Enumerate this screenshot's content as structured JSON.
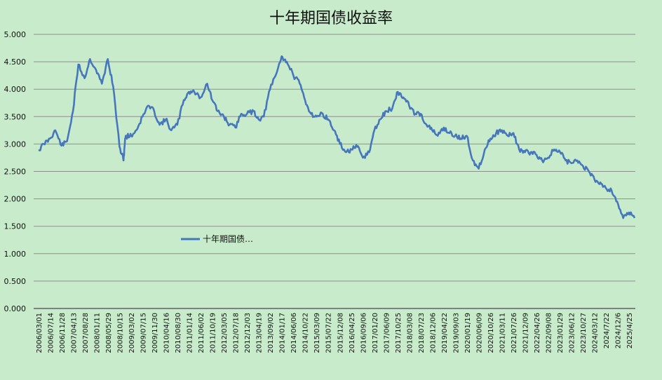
{
  "chart_data": {
    "type": "line",
    "title": "十年期国债收益率",
    "xlabel": "",
    "ylabel": "",
    "ylim": [
      0,
      5
    ],
    "yticks": [
      "0.000",
      "0.500",
      "1.000",
      "1.500",
      "2.000",
      "2.500",
      "3.000",
      "3.500",
      "4.000",
      "4.500",
      "5.000"
    ],
    "grid": true,
    "legend_position": "left-middle",
    "line_color": "#4677bd",
    "x_tick_labels": [
      "2006/03/01",
      "2006/07/14",
      "2006/11/28",
      "2007/04/13",
      "2007/08/28",
      "2008/01/11",
      "2008/05/29",
      "2008/10/15",
      "2009/03/02",
      "2009/07/15",
      "2009/11/30",
      "2010/04/16",
      "2010/08/30",
      "2011/01/14",
      "2011/06/02",
      "2011/10/19",
      "2012/03/05",
      "2012/07/18",
      "2012/12/03",
      "2013/04/19",
      "2013/09/02",
      "2014/01/17",
      "2014/06/06",
      "2014/10/22",
      "2015/03/09",
      "2015/07/22",
      "2015/12/08",
      "2016/04/25",
      "2016/09/06",
      "2017/01/20",
      "2017/06/09",
      "2017/10/25",
      "2018/03/08",
      "2018/07/23",
      "2018/12/06",
      "2019/04/22",
      "2019/09/03",
      "2020/01/19",
      "2020/06/09",
      "2020/10/26",
      "2021/03/11",
      "2021/07/26",
      "2021/12/09",
      "2022/04/26",
      "2022/09/08",
      "2023/01/29",
      "2023/06/12",
      "2023/10/27",
      "2024/03/12",
      "2024/7/22",
      "2024/12/6",
      "2025/4/25"
    ],
    "series": [
      {
        "name": "十年期国债…",
        "x": [
          "2006/03/01",
          "2006/05/01",
          "2006/07/14",
          "2006/09/15",
          "2006/11/28",
          "2007/02/01",
          "2007/04/13",
          "2007/06/15",
          "2007/08/28",
          "2007/11/01",
          "2008/01/11",
          "2008/03/20",
          "2008/05/29",
          "2008/08/01",
          "2008/10/15",
          "2008/12/01",
          "2008/12/20",
          "2009/01/15",
          "2009/03/02",
          "2009/05/01",
          "2009/07/15",
          "2009/09/20",
          "2009/11/30",
          "2010/02/01",
          "2010/04/16",
          "2010/06/20",
          "2010/08/30",
          "2010/11/15",
          "2011/01/14",
          "2011/03/20",
          "2011/06/02",
          "2011/08/20",
          "2011/10/19",
          "2011/12/20",
          "2012/03/05",
          "2012/05/10",
          "2012/07/18",
          "2012/09/25",
          "2012/12/03",
          "2013/02/20",
          "2013/04/19",
          "2013/06/20",
          "2013/09/02",
          "2013/11/20",
          "2014/01/17",
          "2014/03/20",
          "2014/06/06",
          "2014/08/20",
          "2014/10/22",
          "2014/12/31",
          "2015/03/09",
          "2015/05/20",
          "2015/07/22",
          "2015/09/30",
          "2015/12/08",
          "2016/02/20",
          "2016/04/25",
          "2016/06/30",
          "2016/09/06",
          "2016/11/20",
          "2017/01/20",
          "2017/04/01",
          "2017/06/09",
          "2017/08/20",
          "2017/10/25",
          "2017/12/30",
          "2018/03/08",
          "2018/05/20",
          "2018/07/23",
          "2018/09/30",
          "2018/12/06",
          "2019/02/10",
          "2019/04/22",
          "2019/06/30",
          "2019/09/03",
          "2019/11/10",
          "2020/01/19",
          "2020/04/01",
          "2020/06/09",
          "2020/08/20",
          "2020/10/26",
          "2021/01/01",
          "2021/03/11",
          "2021/05/20",
          "2021/07/26",
          "2021/10/01",
          "2021/12/09",
          "2022/02/15",
          "2022/04/26",
          "2022/07/01",
          "2022/09/08",
          "2022/11/20",
          "2023/01/29",
          "2023/04/05",
          "2023/06/12",
          "2023/08/20",
          "2023/10/27",
          "2024/01/05",
          "2024/03/12",
          "2024/05/20",
          "2024/07/22",
          "2024/10/01",
          "2024/12/06",
          "2025/02/15",
          "2025/04/25",
          "2025/06/30"
        ],
        "values": [
          2.88,
          3.0,
          3.1,
          3.25,
          2.97,
          3.05,
          3.6,
          4.45,
          4.2,
          4.55,
          4.35,
          4.1,
          4.55,
          4.05,
          2.95,
          2.7,
          3.1,
          3.15,
          3.15,
          3.25,
          3.5,
          3.7,
          3.6,
          3.35,
          3.45,
          3.25,
          3.35,
          3.8,
          3.95,
          3.95,
          3.85,
          4.1,
          3.8,
          3.6,
          3.5,
          3.35,
          3.3,
          3.55,
          3.55,
          3.6,
          3.45,
          3.5,
          4.0,
          4.3,
          4.6,
          4.5,
          4.25,
          4.1,
          3.8,
          3.55,
          3.5,
          3.55,
          3.45,
          3.25,
          3.0,
          2.85,
          2.9,
          2.95,
          2.75,
          2.85,
          3.25,
          3.45,
          3.6,
          3.65,
          3.95,
          3.85,
          3.7,
          3.55,
          3.55,
          3.35,
          3.25,
          3.15,
          3.3,
          3.2,
          3.15,
          3.1,
          3.15,
          2.7,
          2.55,
          2.9,
          3.1,
          3.2,
          3.25,
          3.15,
          3.2,
          2.9,
          2.85,
          2.85,
          2.8,
          2.7,
          2.75,
          2.9,
          2.85,
          2.7,
          2.65,
          2.7,
          2.6,
          2.5,
          2.35,
          2.3,
          2.2,
          2.15,
          1.95,
          1.65,
          1.75,
          1.65
        ]
      }
    ]
  }
}
